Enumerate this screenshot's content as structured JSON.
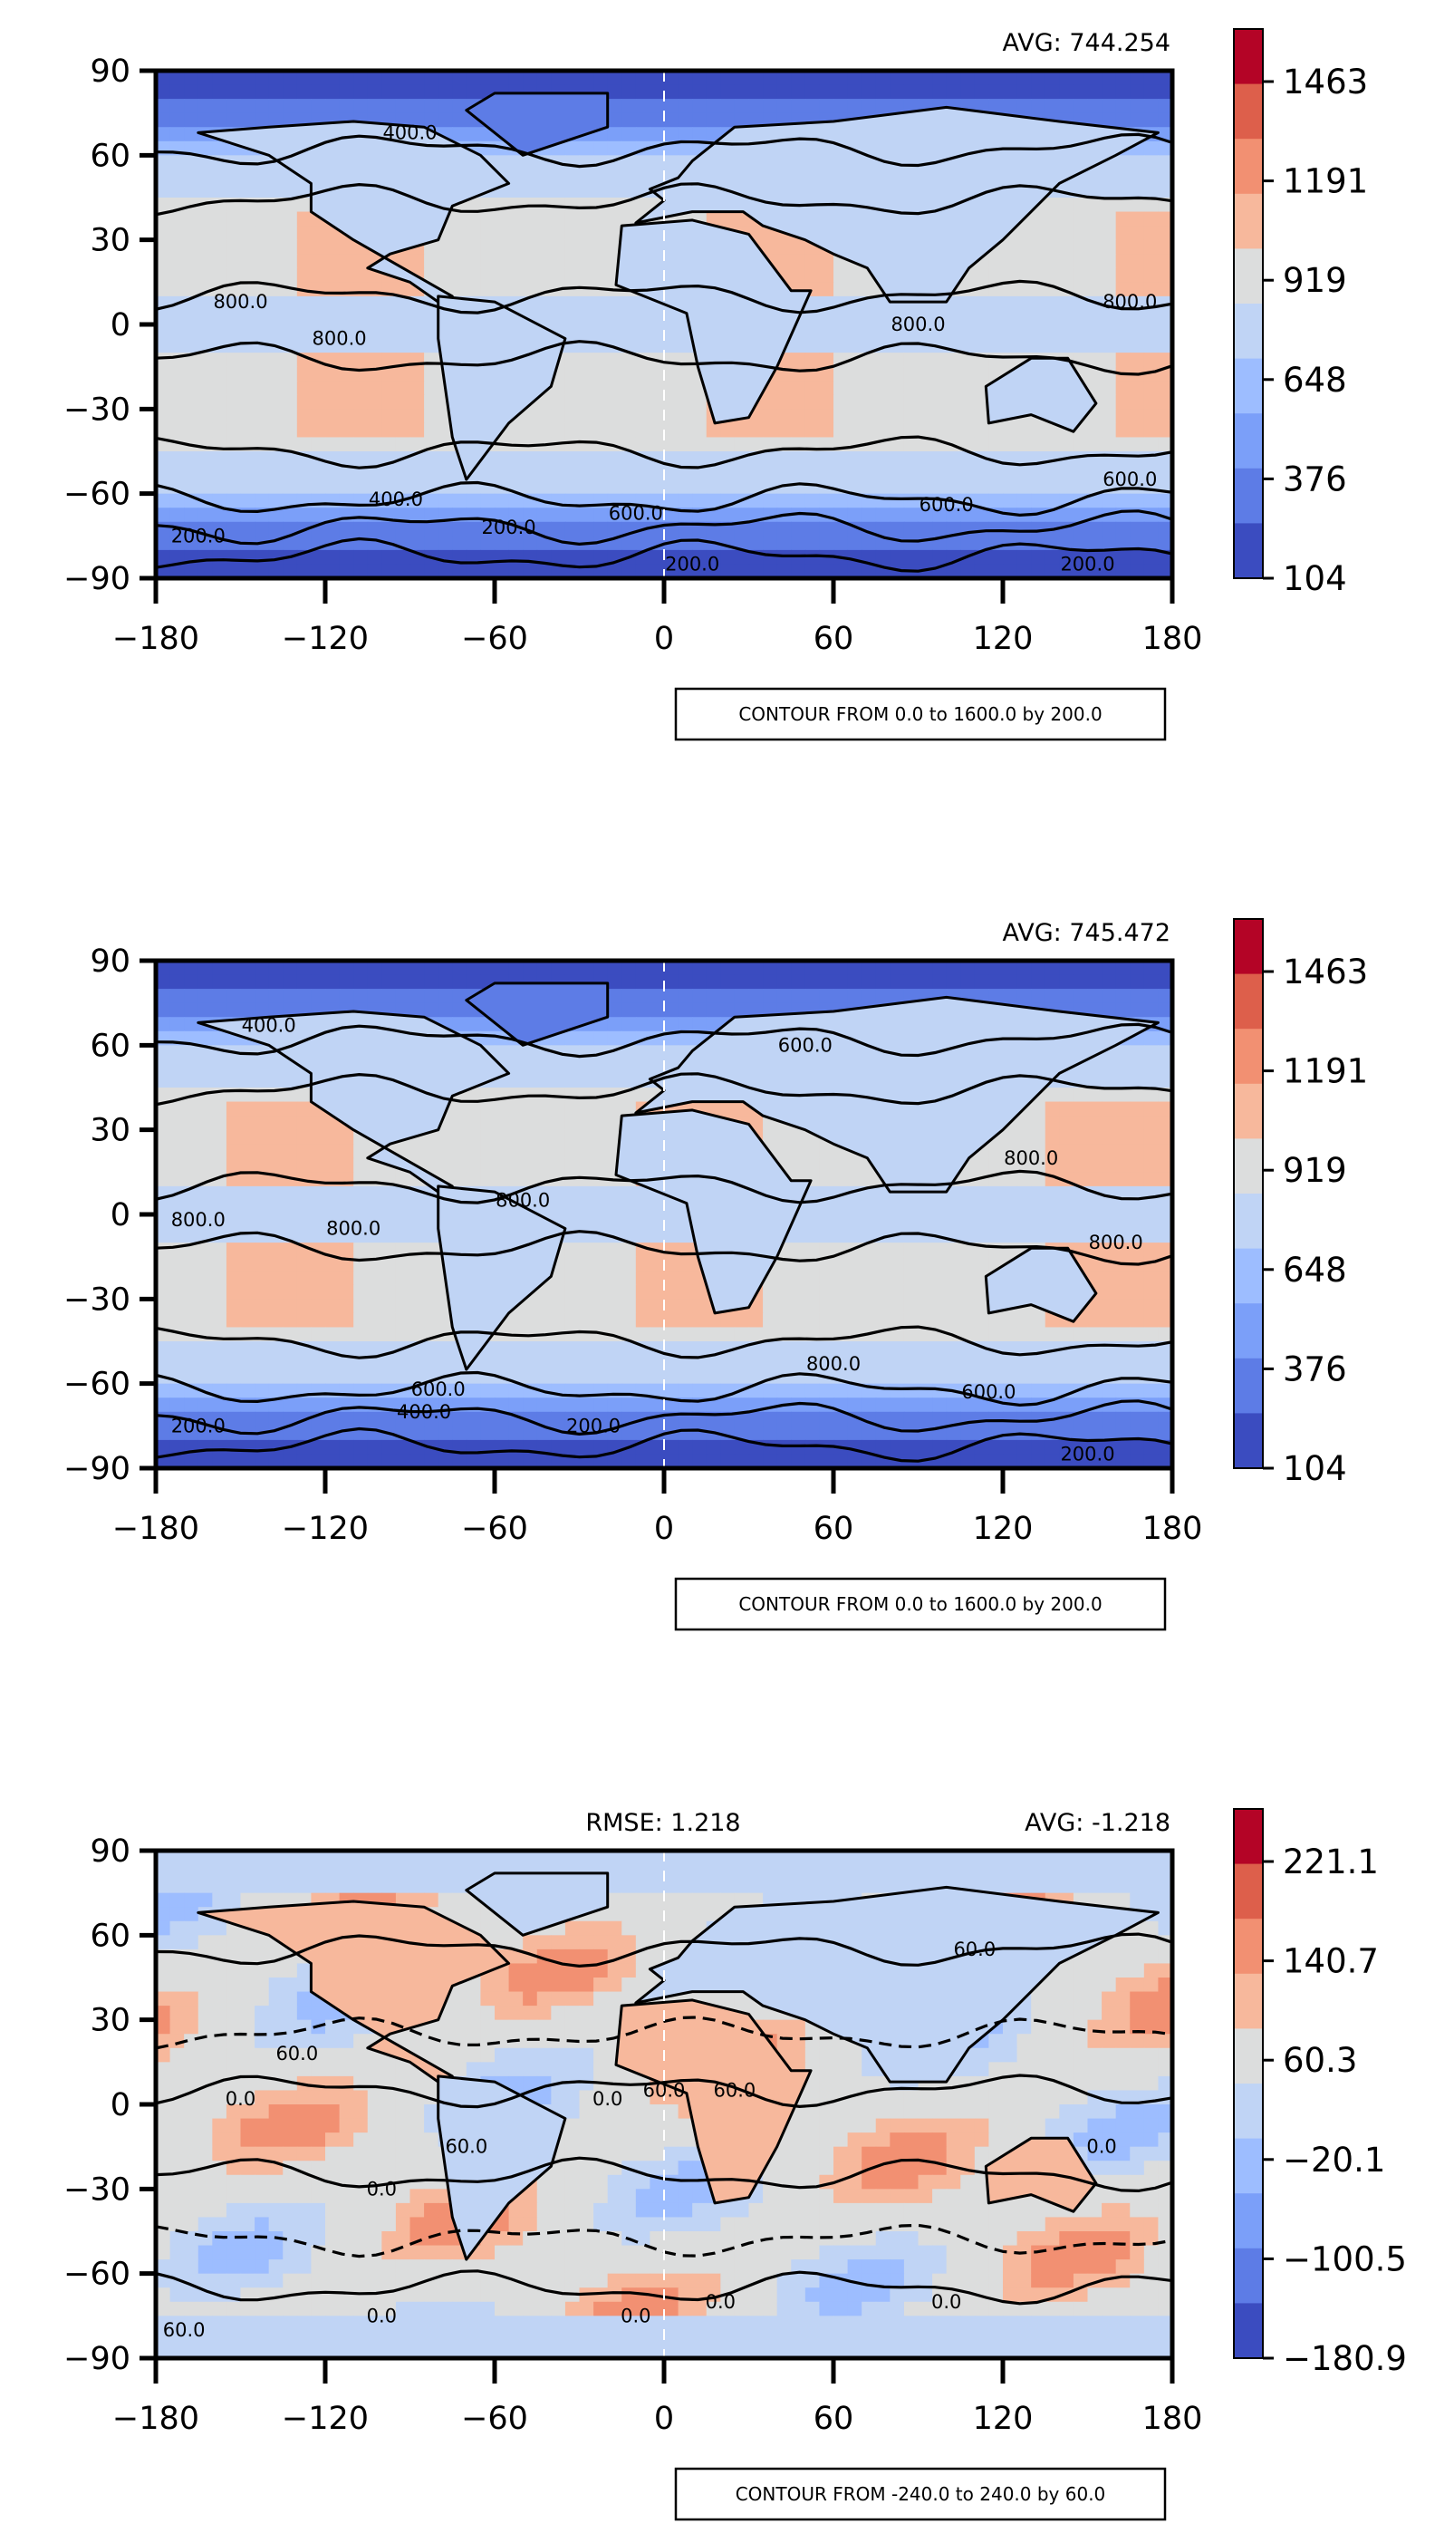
{
  "chart_data": [
    {
      "type": "heatmap",
      "subtype": "global contour map",
      "stats": {
        "avg": "AVG: 744.254"
      },
      "x_ticks": [
        "−180",
        "−120",
        "−60",
        "0",
        "60",
        "120",
        "180"
      ],
      "y_ticks": [
        "90",
        "60",
        "30",
        "0",
        "−30",
        "−60",
        "−90"
      ],
      "xlim": [
        -180,
        180
      ],
      "ylim": [
        -90,
        90
      ],
      "colorbar": {
        "ticks": [
          "1463",
          "1191",
          "919",
          "648",
          "376",
          "104"
        ],
        "range": [
          104,
          1600
        ],
        "colors": [
          "#b40426",
          "#dd5f4b",
          "#f29072",
          "#f7b89c",
          "#dcdddd",
          "#c0d4f5",
          "#9dbdff",
          "#7b9ff9",
          "#5d7ce6",
          "#3b4cc0"
        ]
      },
      "contour_labels": [
        "800.0",
        "800.0",
        "800.0",
        "800.0",
        "600.0",
        "600.0",
        "600.0",
        "400.0",
        "400.0",
        "200.0",
        "200.0",
        "200.0",
        "200.0"
      ],
      "contour_note": "CONTOUR FROM 0.0 to 1600.0 by 200.0"
    },
    {
      "type": "heatmap",
      "subtype": "global contour map",
      "stats": {
        "avg": "AVG: 745.472"
      },
      "x_ticks": [
        "−180",
        "−120",
        "−60",
        "0",
        "60",
        "120",
        "180"
      ],
      "y_ticks": [
        "90",
        "60",
        "30",
        "0",
        "−30",
        "−60",
        "−90"
      ],
      "xlim": [
        -180,
        180
      ],
      "ylim": [
        -90,
        90
      ],
      "colorbar": {
        "ticks": [
          "1463",
          "1191",
          "919",
          "648",
          "376",
          "104"
        ],
        "range": [
          104,
          1600
        ],
        "colors": [
          "#b40426",
          "#dd5f4b",
          "#f29072",
          "#f7b89c",
          "#dcdddd",
          "#c0d4f5",
          "#9dbdff",
          "#7b9ff9",
          "#5d7ce6",
          "#3b4cc0"
        ]
      },
      "contour_labels": [
        "800.0",
        "800.0",
        "800.0",
        "800.0",
        "800.0",
        "800.0",
        "600.0",
        "600.0",
        "600.0",
        "400.0",
        "400.0",
        "200.0",
        "200.0",
        "200.0"
      ],
      "contour_note": "CONTOUR FROM 0.0 to 1600.0 by 200.0"
    },
    {
      "type": "heatmap",
      "subtype": "global contour map (difference)",
      "stats": {
        "rmse": "RMSE: 1.218",
        "avg": "AVG: -1.218"
      },
      "x_ticks": [
        "−180",
        "−120",
        "−60",
        "0",
        "60",
        "120",
        "180"
      ],
      "y_ticks": [
        "90",
        "60",
        "30",
        "0",
        "−30",
        "−60",
        "−90"
      ],
      "xlim": [
        -180,
        180
      ],
      "ylim": [
        -90,
        90
      ],
      "colorbar": {
        "ticks": [
          "221.1",
          "140.7",
          "60.3",
          "−20.1",
          "−100.5",
          "−180.9"
        ],
        "range": [
          -221.1,
          221.1
        ],
        "colors": [
          "#b40426",
          "#dd5f4b",
          "#f29072",
          "#f7b89c",
          "#dcdddd",
          "#c0d4f5",
          "#9dbdff",
          "#7b9ff9",
          "#5d7ce6",
          "#3b4cc0"
        ]
      },
      "contour_labels": [
        "0.0",
        "0.0",
        "0.0",
        "0.0",
        "0.0",
        "0.0",
        "0.0",
        "0.0",
        "60.0",
        "60.0",
        "60.0",
        "60.0",
        "60.0",
        "60.0"
      ],
      "contour_note": "CONTOUR FROM -240.0 to 240.0 by 60.0"
    }
  ]
}
